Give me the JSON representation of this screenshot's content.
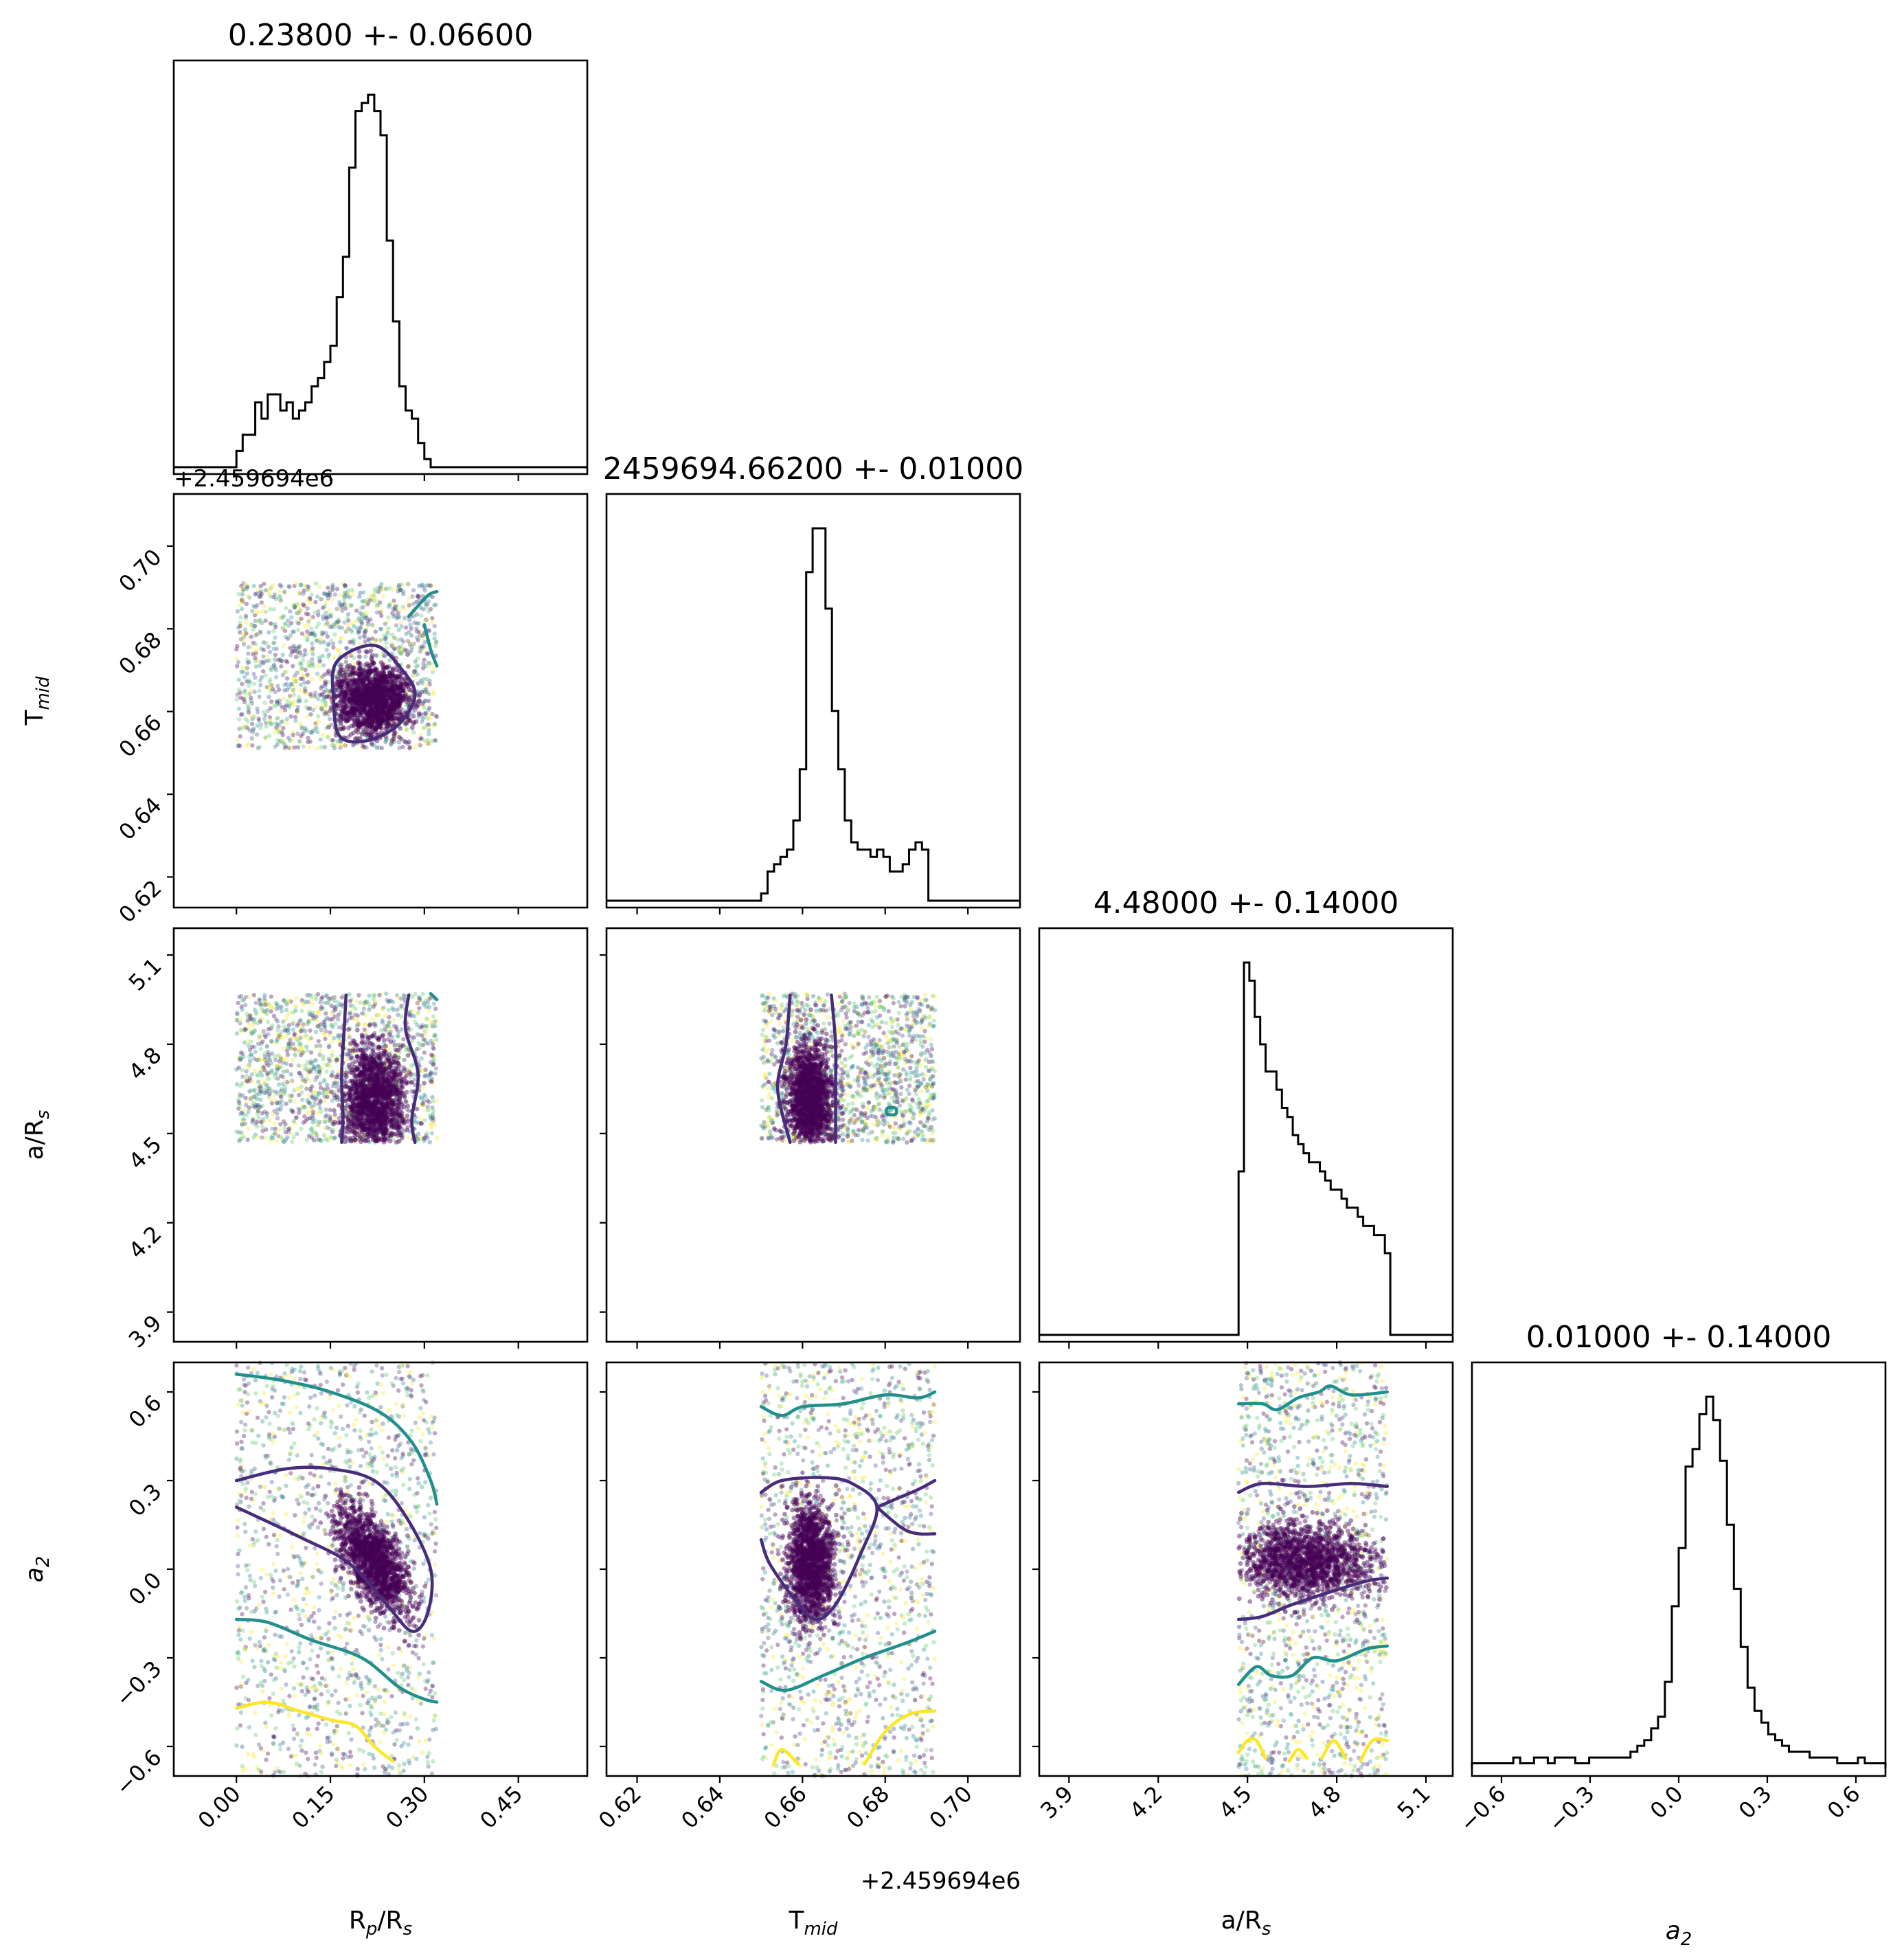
{
  "chart_data": {
    "type": "corner",
    "parameters": [
      {
        "id": "rp",
        "label": "R_p/R_s",
        "label_main": "R",
        "label_sub": "p",
        "label_tail": "/R",
        "label_tail_sub": "s",
        "lim": [
          -0.1,
          0.56
        ],
        "ticks": [
          0.0,
          0.15,
          0.3,
          0.45
        ],
        "tick_labels": [
          "0.00",
          "0.15",
          "0.30",
          "0.45"
        ]
      },
      {
        "id": "tmid",
        "label": "T_mid",
        "label_main": "T",
        "label_sub": "mid",
        "lim": [
          0.6126,
          0.7126
        ],
        "ticks": [
          0.62,
          0.64,
          0.66,
          0.68,
          0.7
        ],
        "tick_labels": [
          "0.62",
          "0.64",
          "0.66",
          "0.68",
          "0.70"
        ],
        "offset_text": "+2.459694e6"
      },
      {
        "id": "ars",
        "label": "a/R_s",
        "label_main": "a/R",
        "label_sub": "s",
        "lim": [
          3.8,
          5.19
        ],
        "ticks": [
          3.9,
          4.2,
          4.5,
          4.8,
          5.1
        ],
        "tick_labels": [
          "3.9",
          "4.2",
          "4.5",
          "4.8",
          "5.1"
        ]
      },
      {
        "id": "a2",
        "label": "a_2",
        "label_main": "a",
        "label_sub": "2",
        "label_italic": true,
        "lim": [
          -0.7,
          0.7
        ],
        "ticks": [
          -0.6,
          -0.3,
          0.0,
          0.3,
          0.6
        ],
        "tick_labels": [
          "−0.6",
          "−0.3",
          "0.0",
          "0.3",
          "0.6"
        ]
      }
    ],
    "titles": [
      "0.23800 +- 0.06600",
      "2459694.66200 +- 0.01000",
      "4.48000 +- 0.14000",
      "0.01000 +- 0.14000"
    ],
    "histograms": [
      {
        "x0": 0.0,
        "x1": 0.32,
        "counts": [
          2,
          4,
          4,
          8,
          6,
          9,
          9,
          7,
          8,
          6,
          7,
          8,
          10,
          11,
          13,
          15,
          21,
          26,
          37,
          44,
          45,
          46,
          44,
          41,
          28,
          18,
          10,
          7,
          6,
          3,
          1,
          0
        ]
      },
      {
        "x0": 0.65,
        "x1": 0.692,
        "counts": [
          1,
          4,
          5,
          6,
          7,
          11,
          18,
          45,
          51,
          51,
          40,
          26,
          18,
          11,
          8,
          7,
          7,
          6,
          7,
          6,
          4,
          4,
          5,
          7,
          8,
          7,
          0
        ]
      },
      {
        "x0": 4.47,
        "x1": 4.98,
        "counts": [
          18,
          41,
          39,
          35,
          32,
          29,
          29,
          27,
          25,
          24,
          22,
          21,
          20,
          19,
          19,
          18,
          17,
          16,
          16,
          15,
          14,
          14,
          13,
          12,
          12,
          11,
          11,
          9
        ]
      },
      {
        "x0": -0.7,
        "x1": 0.7,
        "counts": [
          1,
          1,
          1,
          1,
          1,
          1,
          2,
          1,
          1,
          2,
          2,
          1,
          2,
          2,
          2,
          1,
          1,
          2,
          2,
          2,
          2,
          2,
          2,
          3,
          4,
          5,
          7,
          9,
          15,
          28,
          38,
          52,
          55,
          61,
          64,
          60,
          53,
          42,
          31,
          21,
          14,
          10,
          8,
          6,
          5,
          4,
          3,
          3,
          3,
          2,
          2,
          2,
          2,
          1,
          1,
          1,
          2,
          1,
          1,
          1
        ]
      }
    ],
    "pairs": [
      {
        "row": 1,
        "col": 0,
        "x_range": [
          0.0,
          0.32
        ],
        "y_range": [
          0.651,
          0.691
        ],
        "core": {
          "mx": 0.22,
          "my": 0.663,
          "sx": 0.04,
          "sy": 0.006
        }
      },
      {
        "row": 2,
        "col": 0,
        "x_range": [
          0.0,
          0.32
        ],
        "y_range": [
          4.47,
          4.97
        ],
        "core": {
          "mx": 0.22,
          "my": 4.62,
          "sx": 0.035,
          "sy": 0.13
        }
      },
      {
        "row": 2,
        "col": 1,
        "x_range": [
          0.65,
          0.692
        ],
        "y_range": [
          4.47,
          4.97
        ],
        "core": {
          "mx": 0.662,
          "my": 4.62,
          "sx": 0.004,
          "sy": 0.13
        }
      },
      {
        "row": 3,
        "col": 0,
        "x_range": [
          0.0,
          0.32
        ],
        "y_range": [
          -0.7,
          0.7
        ],
        "core": {
          "mx": 0.22,
          "my": 0.03,
          "sx": 0.04,
          "sy": 0.13,
          "rho": -0.6
        }
      },
      {
        "row": 3,
        "col": 1,
        "x_range": [
          0.65,
          0.692
        ],
        "y_range": [
          -0.7,
          0.7
        ],
        "core": {
          "mx": 0.662,
          "my": 0.03,
          "sx": 0.004,
          "sy": 0.14
        }
      },
      {
        "row": 3,
        "col": 2,
        "x_range": [
          4.47,
          4.97
        ],
        "y_range": [
          -0.7,
          0.7
        ],
        "core": {
          "mx": 4.7,
          "my": 0.03,
          "sx": 0.16,
          "sy": 0.09
        }
      }
    ],
    "contours": [
      {
        "row": 1,
        "col": 0,
        "level": "inner",
        "color": "#472c7a",
        "closed": true,
        "points": [
          [
            0.16,
            0.672
          ],
          [
            0.22,
            0.676
          ],
          [
            0.265,
            0.67
          ],
          [
            0.285,
            0.664
          ],
          [
            0.26,
            0.657
          ],
          [
            0.21,
            0.653
          ],
          [
            0.165,
            0.654
          ],
          [
            0.155,
            0.663
          ]
        ]
      },
      {
        "row": 1,
        "col": 0,
        "level": "middle",
        "color": "#21908d",
        "closed": false,
        "points": [
          [
            0.275,
            0.683
          ],
          [
            0.305,
            0.688
          ],
          [
            0.32,
            0.689
          ]
        ]
      },
      {
        "row": 1,
        "col": 0,
        "level": "middle",
        "color": "#21908d",
        "closed": false,
        "points": [
          [
            0.3,
            0.681
          ],
          [
            0.31,
            0.675
          ],
          [
            0.32,
            0.671
          ]
        ]
      },
      {
        "row": 2,
        "col": 0,
        "level": "inner",
        "color": "#472c7a",
        "closed": false,
        "points": [
          [
            0.175,
            4.965
          ],
          [
            0.172,
            4.85
          ],
          [
            0.168,
            4.7
          ],
          [
            0.17,
            4.55
          ],
          [
            0.168,
            4.47
          ]
        ]
      },
      {
        "row": 2,
        "col": 0,
        "level": "inner",
        "color": "#472c7a",
        "closed": false,
        "points": [
          [
            0.275,
            4.965
          ],
          [
            0.27,
            4.85
          ],
          [
            0.29,
            4.7
          ],
          [
            0.28,
            4.55
          ],
          [
            0.285,
            4.47
          ]
        ]
      },
      {
        "row": 2,
        "col": 0,
        "level": "middle",
        "color": "#21908d",
        "closed": false,
        "points": [
          [
            0.31,
            4.97
          ],
          [
            0.32,
            4.95
          ]
        ]
      },
      {
        "row": 2,
        "col": 1,
        "level": "inner",
        "color": "#472c7a",
        "closed": false,
        "points": [
          [
            0.657,
            4.965
          ],
          [
            0.656,
            4.8
          ],
          [
            0.654,
            4.65
          ],
          [
            0.657,
            4.47
          ]
        ]
      },
      {
        "row": 2,
        "col": 1,
        "level": "inner",
        "color": "#472c7a",
        "closed": false,
        "points": [
          [
            0.667,
            4.965
          ],
          [
            0.668,
            4.8
          ],
          [
            0.668,
            4.65
          ],
          [
            0.668,
            4.47
          ]
        ]
      },
      {
        "row": 2,
        "col": 1,
        "level": "middle",
        "color": "#21908d",
        "closed": true,
        "points": [
          [
            0.6805,
            4.585
          ],
          [
            0.6825,
            4.585
          ],
          [
            0.6825,
            4.565
          ],
          [
            0.6805,
            4.565
          ]
        ]
      },
      {
        "row": 3,
        "col": 0,
        "level": "inner",
        "color": "#472c7a",
        "closed": false,
        "points": [
          [
            0.0,
            0.3
          ],
          [
            0.08,
            0.34
          ],
          [
            0.15,
            0.34
          ],
          [
            0.22,
            0.3
          ],
          [
            0.27,
            0.18
          ],
          [
            0.31,
            0.0
          ],
          [
            0.305,
            -0.15
          ],
          [
            0.28,
            -0.21
          ],
          [
            0.24,
            -0.12
          ],
          [
            0.18,
            0.02
          ],
          [
            0.1,
            0.11
          ],
          [
            0.0,
            0.21
          ]
        ]
      },
      {
        "row": 3,
        "col": 0,
        "level": "middle",
        "color": "#21908d",
        "closed": false,
        "points": [
          [
            0.0,
            0.66
          ],
          [
            0.07,
            0.64
          ],
          [
            0.15,
            0.6
          ],
          [
            0.23,
            0.53
          ],
          [
            0.28,
            0.43
          ],
          [
            0.31,
            0.3
          ],
          [
            0.32,
            0.22
          ]
        ]
      },
      {
        "row": 3,
        "col": 0,
        "level": "middle",
        "color": "#21908d",
        "closed": false,
        "points": [
          [
            0.0,
            -0.17
          ],
          [
            0.05,
            -0.18
          ],
          [
            0.12,
            -0.24
          ],
          [
            0.2,
            -0.3
          ],
          [
            0.26,
            -0.4
          ],
          [
            0.3,
            -0.44
          ],
          [
            0.32,
            -0.45
          ]
        ]
      },
      {
        "row": 3,
        "col": 0,
        "level": "outer",
        "color": "#fde725",
        "closed": false,
        "points": [
          [
            0.0,
            -0.47
          ],
          [
            0.05,
            -0.45
          ],
          [
            0.1,
            -0.48
          ],
          [
            0.15,
            -0.51
          ],
          [
            0.19,
            -0.53
          ],
          [
            0.22,
            -0.6
          ],
          [
            0.25,
            -0.65
          ]
        ]
      },
      {
        "row": 3,
        "col": 1,
        "level": "inner",
        "color": "#472c7a",
        "closed": false,
        "points": [
          [
            0.65,
            0.26
          ],
          [
            0.655,
            0.3
          ],
          [
            0.665,
            0.31
          ],
          [
            0.672,
            0.29
          ],
          [
            0.678,
            0.21
          ],
          [
            0.674,
            0.05
          ],
          [
            0.668,
            -0.12
          ],
          [
            0.663,
            -0.17
          ],
          [
            0.658,
            -0.1
          ],
          [
            0.652,
            0.02
          ],
          [
            0.65,
            0.1
          ]
        ]
      },
      {
        "row": 3,
        "col": 1,
        "level": "inner",
        "color": "#472c7a",
        "closed": false,
        "points": [
          [
            0.678,
            0.21
          ],
          [
            0.683,
            0.24
          ],
          [
            0.688,
            0.27
          ],
          [
            0.692,
            0.3
          ]
        ]
      },
      {
        "row": 3,
        "col": 1,
        "level": "inner",
        "color": "#472c7a",
        "closed": false,
        "points": [
          [
            0.678,
            0.21
          ],
          [
            0.684,
            0.14
          ],
          [
            0.688,
            0.12
          ],
          [
            0.692,
            0.12
          ]
        ]
      },
      {
        "row": 3,
        "col": 1,
        "level": "middle",
        "color": "#21908d",
        "closed": false,
        "points": [
          [
            0.65,
            0.55
          ],
          [
            0.655,
            0.52
          ],
          [
            0.66,
            0.55
          ],
          [
            0.67,
            0.56
          ],
          [
            0.68,
            0.59
          ],
          [
            0.688,
            0.58
          ],
          [
            0.692,
            0.6
          ]
        ]
      },
      {
        "row": 3,
        "col": 1,
        "level": "middle",
        "color": "#21908d",
        "closed": false,
        "points": [
          [
            0.65,
            -0.38
          ],
          [
            0.656,
            -0.41
          ],
          [
            0.665,
            -0.36
          ],
          [
            0.675,
            -0.3
          ],
          [
            0.685,
            -0.25
          ],
          [
            0.692,
            -0.21
          ]
        ]
      },
      {
        "row": 3,
        "col": 1,
        "level": "outer",
        "color": "#fde725",
        "closed": false,
        "points": [
          [
            0.653,
            -0.66
          ],
          [
            0.655,
            -0.61
          ],
          [
            0.659,
            -0.66
          ]
        ]
      },
      {
        "row": 3,
        "col": 1,
        "level": "outer",
        "color": "#fde725",
        "closed": false,
        "points": [
          [
            0.675,
            -0.66
          ],
          [
            0.68,
            -0.55
          ],
          [
            0.686,
            -0.49
          ],
          [
            0.692,
            -0.48
          ]
        ]
      },
      {
        "row": 3,
        "col": 2,
        "level": "inner",
        "color": "#472c7a",
        "closed": false,
        "points": [
          [
            4.47,
            0.26
          ],
          [
            4.55,
            0.29
          ],
          [
            4.7,
            0.28
          ],
          [
            4.85,
            0.29
          ],
          [
            4.97,
            0.28
          ]
        ]
      },
      {
        "row": 3,
        "col": 2,
        "level": "inner",
        "color": "#472c7a",
        "closed": false,
        "points": [
          [
            4.47,
            -0.17
          ],
          [
            4.55,
            -0.16
          ],
          [
            4.65,
            -0.12
          ],
          [
            4.8,
            -0.07
          ],
          [
            4.9,
            -0.04
          ],
          [
            4.97,
            -0.03
          ]
        ]
      },
      {
        "row": 3,
        "col": 2,
        "level": "middle",
        "color": "#21908d",
        "closed": false,
        "points": [
          [
            4.47,
            0.56
          ],
          [
            4.55,
            0.56
          ],
          [
            4.6,
            0.54
          ],
          [
            4.67,
            0.58
          ],
          [
            4.74,
            0.6
          ],
          [
            4.78,
            0.62
          ],
          [
            4.85,
            0.59
          ],
          [
            4.97,
            0.6
          ]
        ]
      },
      {
        "row": 3,
        "col": 2,
        "level": "middle",
        "color": "#21908d",
        "closed": false,
        "points": [
          [
            4.47,
            -0.39
          ],
          [
            4.53,
            -0.33
          ],
          [
            4.58,
            -0.36
          ],
          [
            4.65,
            -0.36
          ],
          [
            4.72,
            -0.3
          ],
          [
            4.8,
            -0.31
          ],
          [
            4.9,
            -0.27
          ],
          [
            4.97,
            -0.26
          ]
        ]
      },
      {
        "row": 3,
        "col": 2,
        "level": "outer",
        "color": "#fde725",
        "closed": false,
        "points": [
          [
            4.47,
            -0.62
          ],
          [
            4.5,
            -0.58
          ],
          [
            4.53,
            -0.58
          ],
          [
            4.56,
            -0.64
          ]
        ]
      },
      {
        "row": 3,
        "col": 2,
        "level": "outer",
        "color": "#fde725",
        "closed": false,
        "points": [
          [
            4.64,
            -0.65
          ],
          [
            4.67,
            -0.61
          ],
          [
            4.7,
            -0.64
          ]
        ]
      },
      {
        "row": 3,
        "col": 2,
        "level": "outer",
        "color": "#fde725",
        "closed": false,
        "points": [
          [
            4.75,
            -0.64
          ],
          [
            4.79,
            -0.58
          ],
          [
            4.83,
            -0.64
          ]
        ]
      },
      {
        "row": 3,
        "col": 2,
        "level": "outer",
        "color": "#fde725",
        "closed": false,
        "points": [
          [
            4.88,
            -0.65
          ],
          [
            4.92,
            -0.58
          ],
          [
            4.97,
            -0.58
          ]
        ]
      }
    ],
    "colormap": [
      "#440154",
      "#3b528b",
      "#21908d",
      "#5dc963",
      "#fde725"
    ],
    "grid": false,
    "legend": "none"
  }
}
